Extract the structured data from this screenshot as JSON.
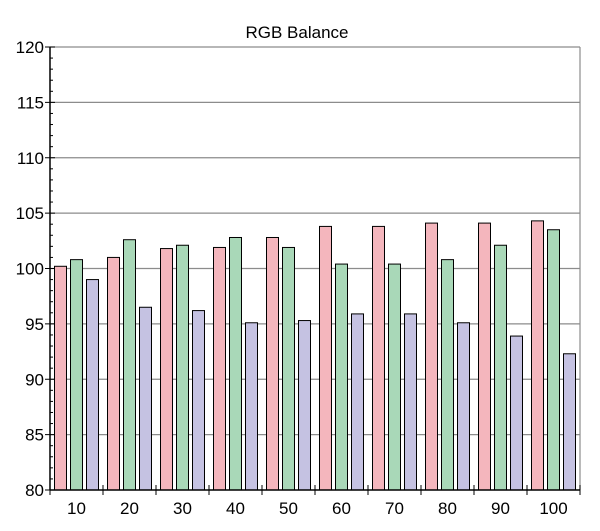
{
  "chart_data": {
    "type": "bar",
    "title": "RGB Balance",
    "xlabel": "",
    "ylabel": "",
    "categories": [
      "10",
      "20",
      "30",
      "40",
      "50",
      "60",
      "70",
      "80",
      "90",
      "100"
    ],
    "series": [
      {
        "color": "#f4b6bd",
        "values": [
          100.2,
          101.0,
          101.8,
          101.9,
          102.8,
          103.8,
          103.8,
          104.1,
          104.1,
          104.3
        ]
      },
      {
        "color": "#a9d8b8",
        "values": [
          100.8,
          102.6,
          102.1,
          102.8,
          101.9,
          100.4,
          100.4,
          100.8,
          102.1,
          103.5
        ]
      },
      {
        "color": "#c5c2e2",
        "values": [
          99.0,
          96.5,
          96.2,
          95.1,
          95.3,
          95.9,
          95.9,
          95.1,
          93.9,
          92.3
        ]
      }
    ],
    "ylim": [
      80,
      120
    ],
    "ytick_step": 5,
    "grid": true,
    "legend": "none"
  }
}
